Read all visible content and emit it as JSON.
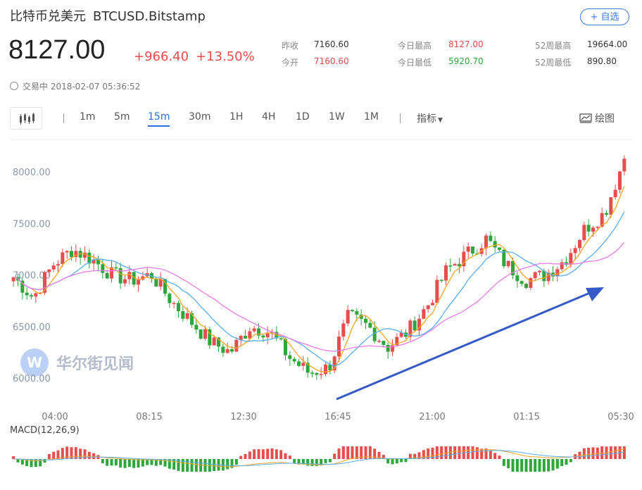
{
  "header": {
    "name": "比特币兑美元",
    "symbol": "BTCUSD.Bitstamp",
    "add_button": "+ 自选"
  },
  "quote": {
    "price": "8127.00",
    "change": "+966.40",
    "change_pct": "+13.50%",
    "prev_close_label": "昨收",
    "prev_close": "7160.60",
    "open_label": "今开",
    "open": "7160.60",
    "high_label": "今日最高",
    "high": "8127.00",
    "low_label": "今日最低",
    "low": "5920.70",
    "w52_high_label": "52周最高",
    "w52_high": "19664.00",
    "w52_low_label": "52周最低",
    "w52_low": "890.80",
    "status": "交易中 2018-02-07 05:36:52"
  },
  "colors": {
    "up": "#e84d4d",
    "down": "#2ea63c",
    "accent": "#2a6fdb",
    "ma_orange": "#f5a623",
    "ma_blue": "#5aaef0",
    "ma_pink": "#e37ee6",
    "arrow": "#3559c7"
  },
  "toolbar": {
    "timeframes": [
      "1m",
      "5m",
      "15m",
      "30m",
      "1H",
      "4H",
      "1D",
      "1W",
      "1M"
    ],
    "active": "15m",
    "indicator_label": "指标",
    "draw_label": "绘图"
  },
  "watermark": "华尔街见闻",
  "chart_data": {
    "type": "candlestick",
    "y_ticks": [
      "8000.00",
      "7500.00",
      "7000.00",
      "6500.00",
      "6000.00"
    ],
    "ylim": [
      5800,
      8300
    ],
    "x_ticks": [
      "04:00",
      "08:15",
      "12:30",
      "16:45",
      "21:00",
      "01:15",
      "05:30"
    ],
    "close_path": [
      [
        "03:00",
        6980
      ],
      [
        "04:00",
        6780
      ],
      [
        "04:45",
        7100
      ],
      [
        "05:45",
        7250
      ],
      [
        "06:30",
        7150
      ],
      [
        "07:15",
        7000
      ],
      [
        "08:15",
        6950
      ],
      [
        "09:15",
        7000
      ],
      [
        "10:00",
        6750
      ],
      [
        "11:00",
        6550
      ],
      [
        "12:00",
        6350
      ],
      [
        "12:30",
        6250
      ],
      [
        "13:15",
        6500
      ],
      [
        "14:00",
        6450
      ],
      [
        "15:00",
        6200
      ],
      [
        "16:00",
        6050
      ],
      [
        "16:45",
        6100
      ],
      [
        "17:45",
        6600
      ],
      [
        "18:30",
        6500
      ],
      [
        "19:30",
        6300
      ],
      [
        "20:00",
        6450
      ],
      [
        "21:00",
        6700
      ],
      [
        "21:45",
        7050
      ],
      [
        "22:45",
        7200
      ],
      [
        "23:30",
        7350
      ],
      [
        "00:15",
        7100
      ],
      [
        "01:15",
        6950
      ],
      [
        "02:00",
        7000
      ],
      [
        "02:45",
        7150
      ],
      [
        "03:45",
        7450
      ],
      [
        "04:30",
        7600
      ],
      [
        "05:30",
        8127
      ]
    ],
    "macd": {
      "label": "MACD(12,26,9)"
    },
    "annotation": "up-trend arrow"
  }
}
